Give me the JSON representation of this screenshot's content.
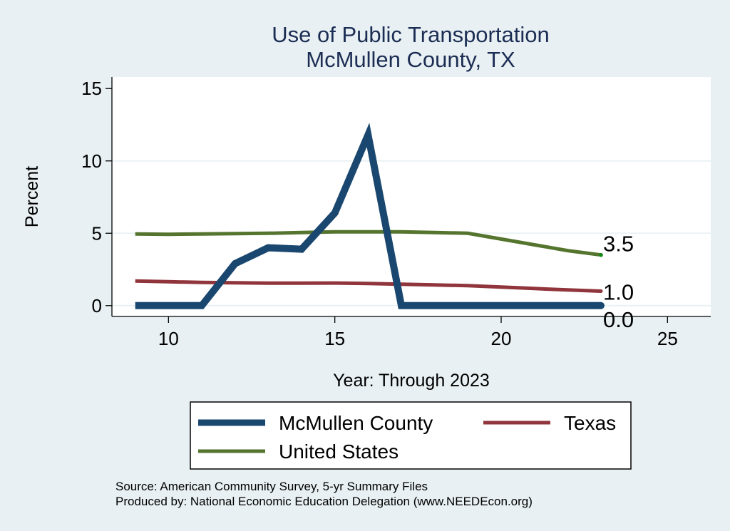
{
  "chart_data": {
    "type": "line",
    "title": "Use of Public Transportation",
    "subtitle": "McMullen County, TX",
    "xlabel": "Year: Through 2023",
    "ylabel": "Percent",
    "xlim": [
      8.3,
      26.3
    ],
    "ylim": [
      -0.75,
      15.8
    ],
    "xticks": [
      10,
      15,
      20,
      25
    ],
    "yticks": [
      0,
      5,
      10,
      15
    ],
    "grid": true,
    "legend_position": "bottom",
    "series": [
      {
        "name": "McMullen County",
        "color": "#1a476f",
        "x": [
          9,
          10,
          11,
          12,
          13,
          14,
          15,
          16,
          17,
          18,
          19,
          20,
          21,
          22,
          23
        ],
        "values": [
          0,
          0,
          0,
          2.9,
          4.0,
          3.9,
          6.4,
          11.8,
          0,
          0,
          0,
          0,
          0,
          0,
          0
        ],
        "end_label": "0.0"
      },
      {
        "name": "Texas",
        "color": "#90353b",
        "x": [
          9,
          10,
          11,
          12,
          13,
          14,
          15,
          16,
          17,
          18,
          19,
          20,
          21,
          22,
          23
        ],
        "values": [
          1.7,
          1.65,
          1.6,
          1.58,
          1.55,
          1.55,
          1.56,
          1.53,
          1.48,
          1.43,
          1.38,
          1.28,
          1.18,
          1.08,
          1.0
        ],
        "end_label": "1.0"
      },
      {
        "name": "United States",
        "color": "#55752f",
        "x": [
          9,
          10,
          11,
          12,
          13,
          14,
          15,
          16,
          17,
          18,
          19,
          20,
          21,
          22,
          23
        ],
        "values": [
          4.95,
          4.93,
          4.95,
          4.98,
          5.0,
          5.05,
          5.1,
          5.1,
          5.1,
          5.05,
          5.0,
          4.6,
          4.2,
          3.8,
          3.5
        ],
        "end_label": "3.5"
      }
    ],
    "notes": [
      "Source: American Community Survey, 5-yr Summary Files",
      "Produced by: National Economic Education Delegation (www.NEEDEcon.org)"
    ]
  }
}
